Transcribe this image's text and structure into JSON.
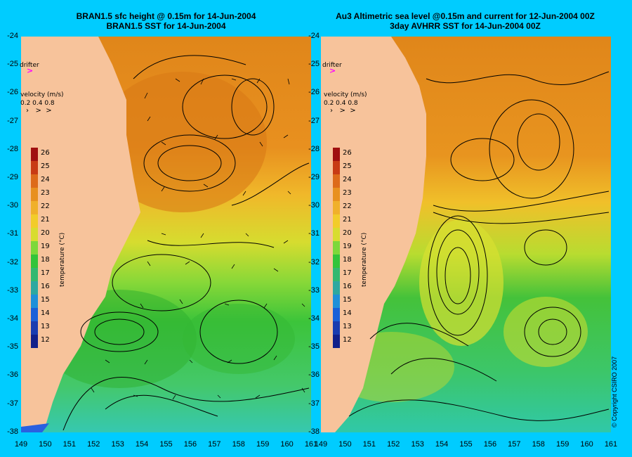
{
  "panels": [
    {
      "title_line1": "BRAN1.5 sfc height @ 0.15m for 14-Jun-2004",
      "title_line2": "BRAN1.5 SST for 14-Jun-2004"
    },
    {
      "title_line1": "Au3 Altimetric sea level  @0.15m and current for 12-Jun-2004 00Z",
      "title_line2": "3day AVHRR SST for 14-Jun-2004 00Z"
    }
  ],
  "drifter_label": "drifter",
  "velocity_label": "velocity (m/s)",
  "velocity_scale": "0.2 0.4 0.8",
  "colorbar_label": "temperature (°C)",
  "colorbar_ticks": [
    "26",
    "25",
    "24",
    "23",
    "22",
    "21",
    "20",
    "19",
    "18",
    "17",
    "16",
    "15",
    "14",
    "13",
    "12"
  ],
  "lat_ticks": [
    "-24",
    "-25",
    "-26",
    "-27",
    "-28",
    "-29",
    "-30",
    "-31",
    "-32",
    "-33",
    "-34",
    "-35",
    "-36",
    "-37",
    "-38"
  ],
  "lon_ticks": [
    "149",
    "150",
    "151",
    "152",
    "153",
    "154",
    "155",
    "156",
    "157",
    "158",
    "159",
    "160",
    "161"
  ],
  "copyright": "© Copyright CSIRO 2007",
  "colors": {
    "background": "#00ccff",
    "land": "#f7c39b",
    "warm": "#e68a1a",
    "mid": "#f2c02a",
    "cool": "#33cc33",
    "drifter": "#ff00ff"
  }
}
